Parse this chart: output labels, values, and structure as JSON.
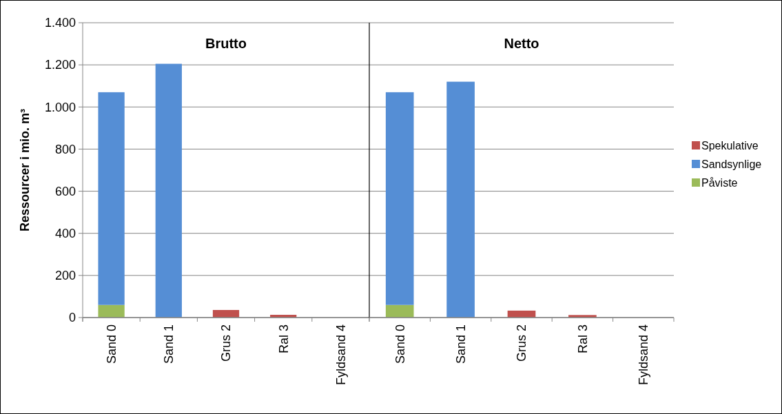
{
  "chart_data": [
    {
      "type": "bar",
      "title": "Brutto",
      "ylabel": "Ressourcer i mio. m³",
      "stacked": true,
      "categories": [
        "Sand 0",
        "Sand 1",
        "Grus 2",
        "Ral 3",
        "Fyldsand 4"
      ],
      "ylim": [
        0,
        1400
      ],
      "yticks": [
        0,
        200,
        400,
        600,
        800,
        {
          "value": 1000,
          "label": "1.000"
        },
        {
          "value": 1200,
          "label": "1.200"
        },
        {
          "value": 1400,
          "label": "1.400"
        }
      ],
      "grid": "y",
      "legend": false,
      "series": [
        {
          "color": "#9bbb59",
          "values": [
            60,
            0,
            0,
            0,
            0
          ]
        },
        {
          "color": "#558ed5",
          "values": [
            1010,
            1205,
            0,
            0,
            0
          ]
        },
        {
          "color": "#c0504d",
          "values": [
            0,
            0,
            36,
            13,
            0
          ]
        }
      ]
    },
    {
      "type": "bar",
      "title": "Netto",
      "stacked": true,
      "categories": [
        "Sand 0",
        "Sand 1",
        "Grus 2",
        "Ral 3",
        "Fyldsand 4"
      ],
      "ylim": [
        0,
        1400
      ],
      "yticks": [
        0,
        200,
        400,
        600,
        800,
        1000,
        1200,
        1400
      ],
      "grid": "y",
      "tick_labels": "x",
      "legend": "right",
      "series": [
        {
          "name": "Påviste",
          "color": "#9bbb59",
          "values": [
            60,
            0,
            0,
            0,
            0
          ]
        },
        {
          "name": "Sandsynlige",
          "color": "#558ed5",
          "values": [
            1010,
            1120,
            0,
            0,
            0
          ]
        },
        {
          "name": "Spekulative",
          "color": "#c0504d",
          "values": [
            0,
            0,
            33,
            12,
            0
          ]
        }
      ]
    }
  ]
}
